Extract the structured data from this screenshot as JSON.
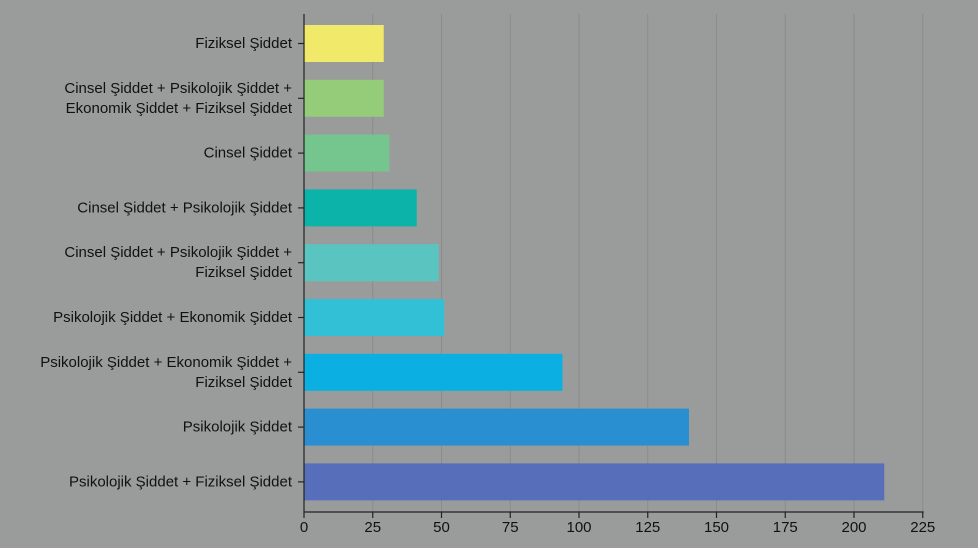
{
  "chart_data": {
    "type": "bar",
    "orientation": "horizontal",
    "title": "",
    "xlabel": "",
    "ylabel": "",
    "categories": [
      "Fiziksel Şiddet",
      "Cinsel Şiddet + Psikolojik Şiddet + Ekonomik Şiddet + Fiziksel Şiddet",
      "Cinsel Şiddet",
      "Cinsel Şiddet + Psikolojik Şiddet",
      "Cinsel Şiddet + Psikolojik Şiddet + Fiziksel Şiddet",
      "Psikolojik Şiddet + Ekonomik Şiddet",
      "Psikolojik Şiddet + Ekonomik Şiddet + Fiziksel Şiddet",
      "Psikolojik Şiddet",
      "Psikolojik Şiddet + Fiziksel Şiddet"
    ],
    "category_lines": [
      [
        "Fiziksel Şiddet"
      ],
      [
        "Cinsel Şiddet + Psikolojik Şiddet +",
        "Ekonomik Şiddet + Fiziksel Şiddet"
      ],
      [
        "Cinsel Şiddet"
      ],
      [
        "Cinsel Şiddet + Psikolojik Şiddet"
      ],
      [
        "Cinsel Şiddet + Psikolojik Şiddet +",
        "Fiziksel Şiddet"
      ],
      [
        "Psikolojik Şiddet + Ekonomik Şiddet"
      ],
      [
        "Psikolojik Şiddet + Ekonomik Şiddet +",
        "Fiziksel Şiddet"
      ],
      [
        "Psikolojik Şiddet"
      ],
      [
        "Psikolojik Şiddet + Fiziksel Şiddet"
      ]
    ],
    "values": [
      29,
      29,
      31,
      41,
      49,
      51,
      94,
      140,
      211
    ],
    "colors": [
      "#f0e96a",
      "#95cc7a",
      "#74c68e",
      "#0bb3a8",
      "#5ac5c0",
      "#31c0d6",
      "#0cafe1",
      "#2a8fd0",
      "#576fbb"
    ],
    "xlim": [
      0,
      230
    ],
    "xticks": [
      0,
      25,
      50,
      75,
      100,
      125,
      150,
      175,
      200,
      225
    ],
    "grid": true,
    "legend": "none"
  }
}
